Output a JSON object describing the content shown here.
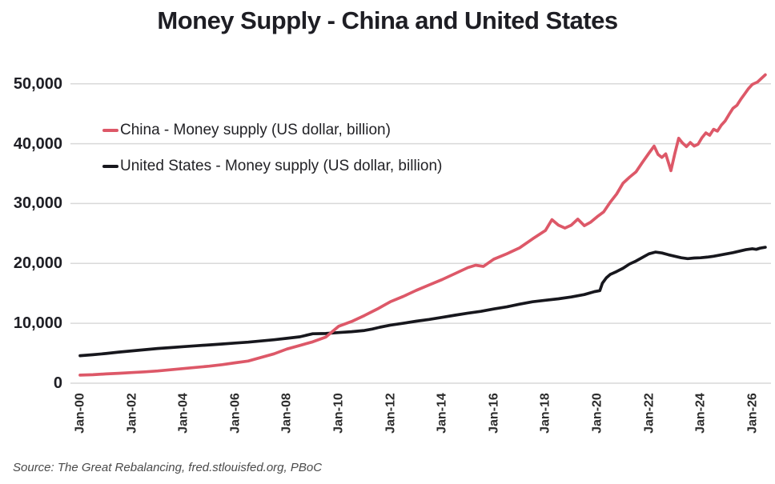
{
  "title": "Money Supply - China and United States",
  "source": "Source: The Great Rebalancing, fred.stlouisfed.org, PBoC",
  "colors": {
    "china_line": "#dd5868",
    "us_line": "#17171d",
    "gridline": "#d9d9d9",
    "title_text": "#1e1e24"
  },
  "legend": [
    {
      "label": "China - Money supply (US dollar, billion)",
      "series": "china"
    },
    {
      "label": "United States - Money supply (US dollar, billion)",
      "series": "us"
    }
  ],
  "chart_data": {
    "type": "line",
    "title": "Money Supply - China and United States",
    "xlabel": "",
    "ylabel": "",
    "grid": "horizontal",
    "legend_position": "inside-top-left",
    "x_axis": {
      "range_years": [
        1999.63,
        2026.72
      ],
      "ticks": [
        {
          "year": 2000,
          "label": "Jan-00"
        },
        {
          "year": 2002,
          "label": "Jan-02"
        },
        {
          "year": 2004,
          "label": "Jan-04"
        },
        {
          "year": 2006,
          "label": "Jan-06"
        },
        {
          "year": 2008,
          "label": "Jan-08"
        },
        {
          "year": 2010,
          "label": "Jan-10"
        },
        {
          "year": 2012,
          "label": "Jan-12"
        },
        {
          "year": 2014,
          "label": "Jan-14"
        },
        {
          "year": 2016,
          "label": "Jan-16"
        },
        {
          "year": 2018,
          "label": "Jan-18"
        },
        {
          "year": 2020,
          "label": "Jan-20"
        },
        {
          "year": 2022,
          "label": "Jan-22"
        },
        {
          "year": 2024,
          "label": "Jan-24"
        },
        {
          "year": 2026,
          "label": "Jan-26"
        }
      ]
    },
    "y_axis": {
      "range": [
        0,
        52500
      ],
      "ticks": [
        {
          "value": 0,
          "label": "0"
        },
        {
          "value": 10000,
          "label": "10,000"
        },
        {
          "value": 20000,
          "label": "20,000"
        },
        {
          "value": 30000,
          "label": "30,000"
        },
        {
          "value": 40000,
          "label": "40,000"
        },
        {
          "value": 50000,
          "label": "50,000"
        }
      ]
    },
    "series": [
      {
        "name": "China - Money supply (US dollar, billion)",
        "color": "#dd5868",
        "points": [
          [
            2000.0,
            1350
          ],
          [
            2000.5,
            1420
          ],
          [
            2001.0,
            1550
          ],
          [
            2001.5,
            1650
          ],
          [
            2002.0,
            1780
          ],
          [
            2002.5,
            1900
          ],
          [
            2003.0,
            2050
          ],
          [
            2003.5,
            2250
          ],
          [
            2004.0,
            2450
          ],
          [
            2004.5,
            2650
          ],
          [
            2005.0,
            2850
          ],
          [
            2005.5,
            3100
          ],
          [
            2006.0,
            3400
          ],
          [
            2006.5,
            3700
          ],
          [
            2007.0,
            4300
          ],
          [
            2007.5,
            4900
          ],
          [
            2008.0,
            5700
          ],
          [
            2008.5,
            6300
          ],
          [
            2009.0,
            6900
          ],
          [
            2009.5,
            7700
          ],
          [
            2010.0,
            9500
          ],
          [
            2010.5,
            10300
          ],
          [
            2011.0,
            11300
          ],
          [
            2011.5,
            12400
          ],
          [
            2012.0,
            13600
          ],
          [
            2012.5,
            14500
          ],
          [
            2013.0,
            15500
          ],
          [
            2013.5,
            16400
          ],
          [
            2014.0,
            17300
          ],
          [
            2014.5,
            18300
          ],
          [
            2015.0,
            19300
          ],
          [
            2015.3,
            19700
          ],
          [
            2015.6,
            19500
          ],
          [
            2016.0,
            20700
          ],
          [
            2016.5,
            21600
          ],
          [
            2017.0,
            22600
          ],
          [
            2017.5,
            24100
          ],
          [
            2018.0,
            25500
          ],
          [
            2018.25,
            27300
          ],
          [
            2018.5,
            26400
          ],
          [
            2018.75,
            25900
          ],
          [
            2019.0,
            26400
          ],
          [
            2019.25,
            27400
          ],
          [
            2019.5,
            26300
          ],
          [
            2019.75,
            26900
          ],
          [
            2020.0,
            27800
          ],
          [
            2020.25,
            28600
          ],
          [
            2020.5,
            30200
          ],
          [
            2020.75,
            31600
          ],
          [
            2021.0,
            33400
          ],
          [
            2021.25,
            34400
          ],
          [
            2021.5,
            35300
          ],
          [
            2021.75,
            36900
          ],
          [
            2022.0,
            38400
          ],
          [
            2022.2,
            39600
          ],
          [
            2022.35,
            38200
          ],
          [
            2022.5,
            37700
          ],
          [
            2022.65,
            38300
          ],
          [
            2022.85,
            35500
          ],
          [
            2023.0,
            38300
          ],
          [
            2023.15,
            40900
          ],
          [
            2023.3,
            40100
          ],
          [
            2023.45,
            39500
          ],
          [
            2023.6,
            40200
          ],
          [
            2023.75,
            39600
          ],
          [
            2023.9,
            39900
          ],
          [
            2024.05,
            41000
          ],
          [
            2024.2,
            41800
          ],
          [
            2024.35,
            41400
          ],
          [
            2024.5,
            42400
          ],
          [
            2024.65,
            42100
          ],
          [
            2024.8,
            43100
          ],
          [
            2024.95,
            43800
          ],
          [
            2025.1,
            44900
          ],
          [
            2025.25,
            45900
          ],
          [
            2025.4,
            46400
          ],
          [
            2025.55,
            47400
          ],
          [
            2025.7,
            48300
          ],
          [
            2025.85,
            49200
          ],
          [
            2026.0,
            49900
          ],
          [
            2026.2,
            50300
          ],
          [
            2026.35,
            50900
          ],
          [
            2026.5,
            51500
          ]
        ]
      },
      {
        "name": "United States - Money supply (US dollar, billion)",
        "color": "#17171d",
        "points": [
          [
            2000.0,
            4600
          ],
          [
            2000.5,
            4750
          ],
          [
            2001.0,
            4950
          ],
          [
            2001.5,
            5200
          ],
          [
            2002.0,
            5400
          ],
          [
            2002.5,
            5600
          ],
          [
            2003.0,
            5800
          ],
          [
            2003.5,
            5950
          ],
          [
            2004.0,
            6100
          ],
          [
            2004.5,
            6250
          ],
          [
            2005.0,
            6400
          ],
          [
            2005.5,
            6550
          ],
          [
            2006.0,
            6700
          ],
          [
            2006.5,
            6850
          ],
          [
            2007.0,
            7050
          ],
          [
            2007.5,
            7250
          ],
          [
            2008.0,
            7500
          ],
          [
            2008.5,
            7750
          ],
          [
            2008.8,
            8050
          ],
          [
            2009.0,
            8250
          ],
          [
            2009.5,
            8300
          ],
          [
            2010.0,
            8450
          ],
          [
            2010.5,
            8600
          ],
          [
            2011.0,
            8800
          ],
          [
            2011.3,
            9050
          ],
          [
            2011.6,
            9350
          ],
          [
            2012.0,
            9700
          ],
          [
            2012.5,
            10000
          ],
          [
            2013.0,
            10350
          ],
          [
            2013.5,
            10650
          ],
          [
            2014.0,
            11000
          ],
          [
            2014.5,
            11350
          ],
          [
            2015.0,
            11700
          ],
          [
            2015.5,
            12000
          ],
          [
            2016.0,
            12400
          ],
          [
            2016.5,
            12750
          ],
          [
            2017.0,
            13200
          ],
          [
            2017.5,
            13600
          ],
          [
            2018.0,
            13850
          ],
          [
            2018.5,
            14100
          ],
          [
            2019.0,
            14400
          ],
          [
            2019.5,
            14800
          ],
          [
            2019.9,
            15300
          ],
          [
            2020.1,
            15450
          ],
          [
            2020.2,
            16700
          ],
          [
            2020.35,
            17600
          ],
          [
            2020.5,
            18150
          ],
          [
            2020.75,
            18650
          ],
          [
            2021.0,
            19200
          ],
          [
            2021.25,
            19900
          ],
          [
            2021.5,
            20400
          ],
          [
            2021.75,
            21000
          ],
          [
            2022.0,
            21600
          ],
          [
            2022.25,
            21900
          ],
          [
            2022.5,
            21750
          ],
          [
            2022.75,
            21450
          ],
          [
            2023.0,
            21200
          ],
          [
            2023.25,
            20950
          ],
          [
            2023.5,
            20800
          ],
          [
            2023.75,
            20900
          ],
          [
            2024.0,
            20950
          ],
          [
            2024.25,
            21050
          ],
          [
            2024.5,
            21200
          ],
          [
            2024.75,
            21400
          ],
          [
            2025.0,
            21600
          ],
          [
            2025.25,
            21800
          ],
          [
            2025.5,
            22050
          ],
          [
            2025.75,
            22300
          ],
          [
            2026.0,
            22450
          ],
          [
            2026.15,
            22350
          ],
          [
            2026.3,
            22550
          ],
          [
            2026.5,
            22700
          ]
        ]
      }
    ]
  }
}
